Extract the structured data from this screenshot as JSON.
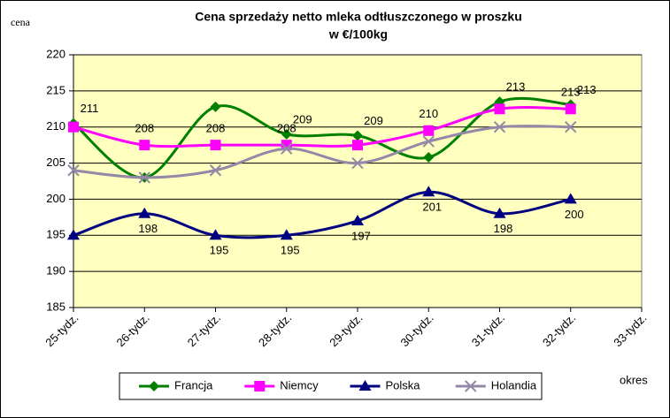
{
  "chart_data": {
    "type": "line",
    "title": "Cena sprzedaży netto mleka odtłuszczonego w proszku",
    "subtitle": "w €/100kg",
    "y_label": "cena",
    "x_label": "okres",
    "categories": [
      "25-tydz.",
      "26-tydz.",
      "27-tydz.",
      "28-tydz.",
      "29-tydz.",
      "30-tydz.",
      "31-tydz.",
      "32-tydz.",
      "33-tydz."
    ],
    "series": [
      {
        "name": "Francja",
        "color": "#008000",
        "marker": "diamond",
        "values": [
          210.5,
          203,
          212.8,
          209,
          208.8,
          205.8,
          213.5,
          213.1,
          null
        ],
        "value_labels": [
          "211",
          null,
          null,
          "209",
          "209",
          null,
          "213",
          "213",
          null
        ]
      },
      {
        "name": "Niemcy",
        "color": "#ff00ff",
        "marker": "square",
        "values": [
          210,
          207.5,
          207.5,
          207.5,
          207.5,
          209.5,
          212.5,
          212.5,
          null
        ],
        "value_labels": [
          null,
          "208",
          "208",
          "208",
          null,
          "210",
          null,
          "213",
          null
        ]
      },
      {
        "name": "Polska",
        "color": "#000080",
        "marker": "triangle",
        "values": [
          195,
          198,
          195,
          195,
          197,
          201,
          198,
          200,
          null
        ],
        "value_labels": [
          null,
          "198",
          "195",
          "195",
          "197",
          "201",
          "198",
          "200",
          null
        ]
      },
      {
        "name": "Holandia",
        "color": "#9488a8",
        "marker": "x",
        "values": [
          204,
          203,
          204,
          207,
          205,
          208,
          210,
          210,
          null
        ],
        "value_labels": [
          null,
          null,
          null,
          null,
          null,
          null,
          null,
          null,
          null
        ]
      }
    ],
    "ylim": [
      185,
      220
    ],
    "yticks": [
      185,
      190,
      195,
      200,
      205,
      210,
      215,
      220
    ],
    "grid": true,
    "smooth": true,
    "legend": "bottom",
    "plot_background": "#ffffc0"
  }
}
